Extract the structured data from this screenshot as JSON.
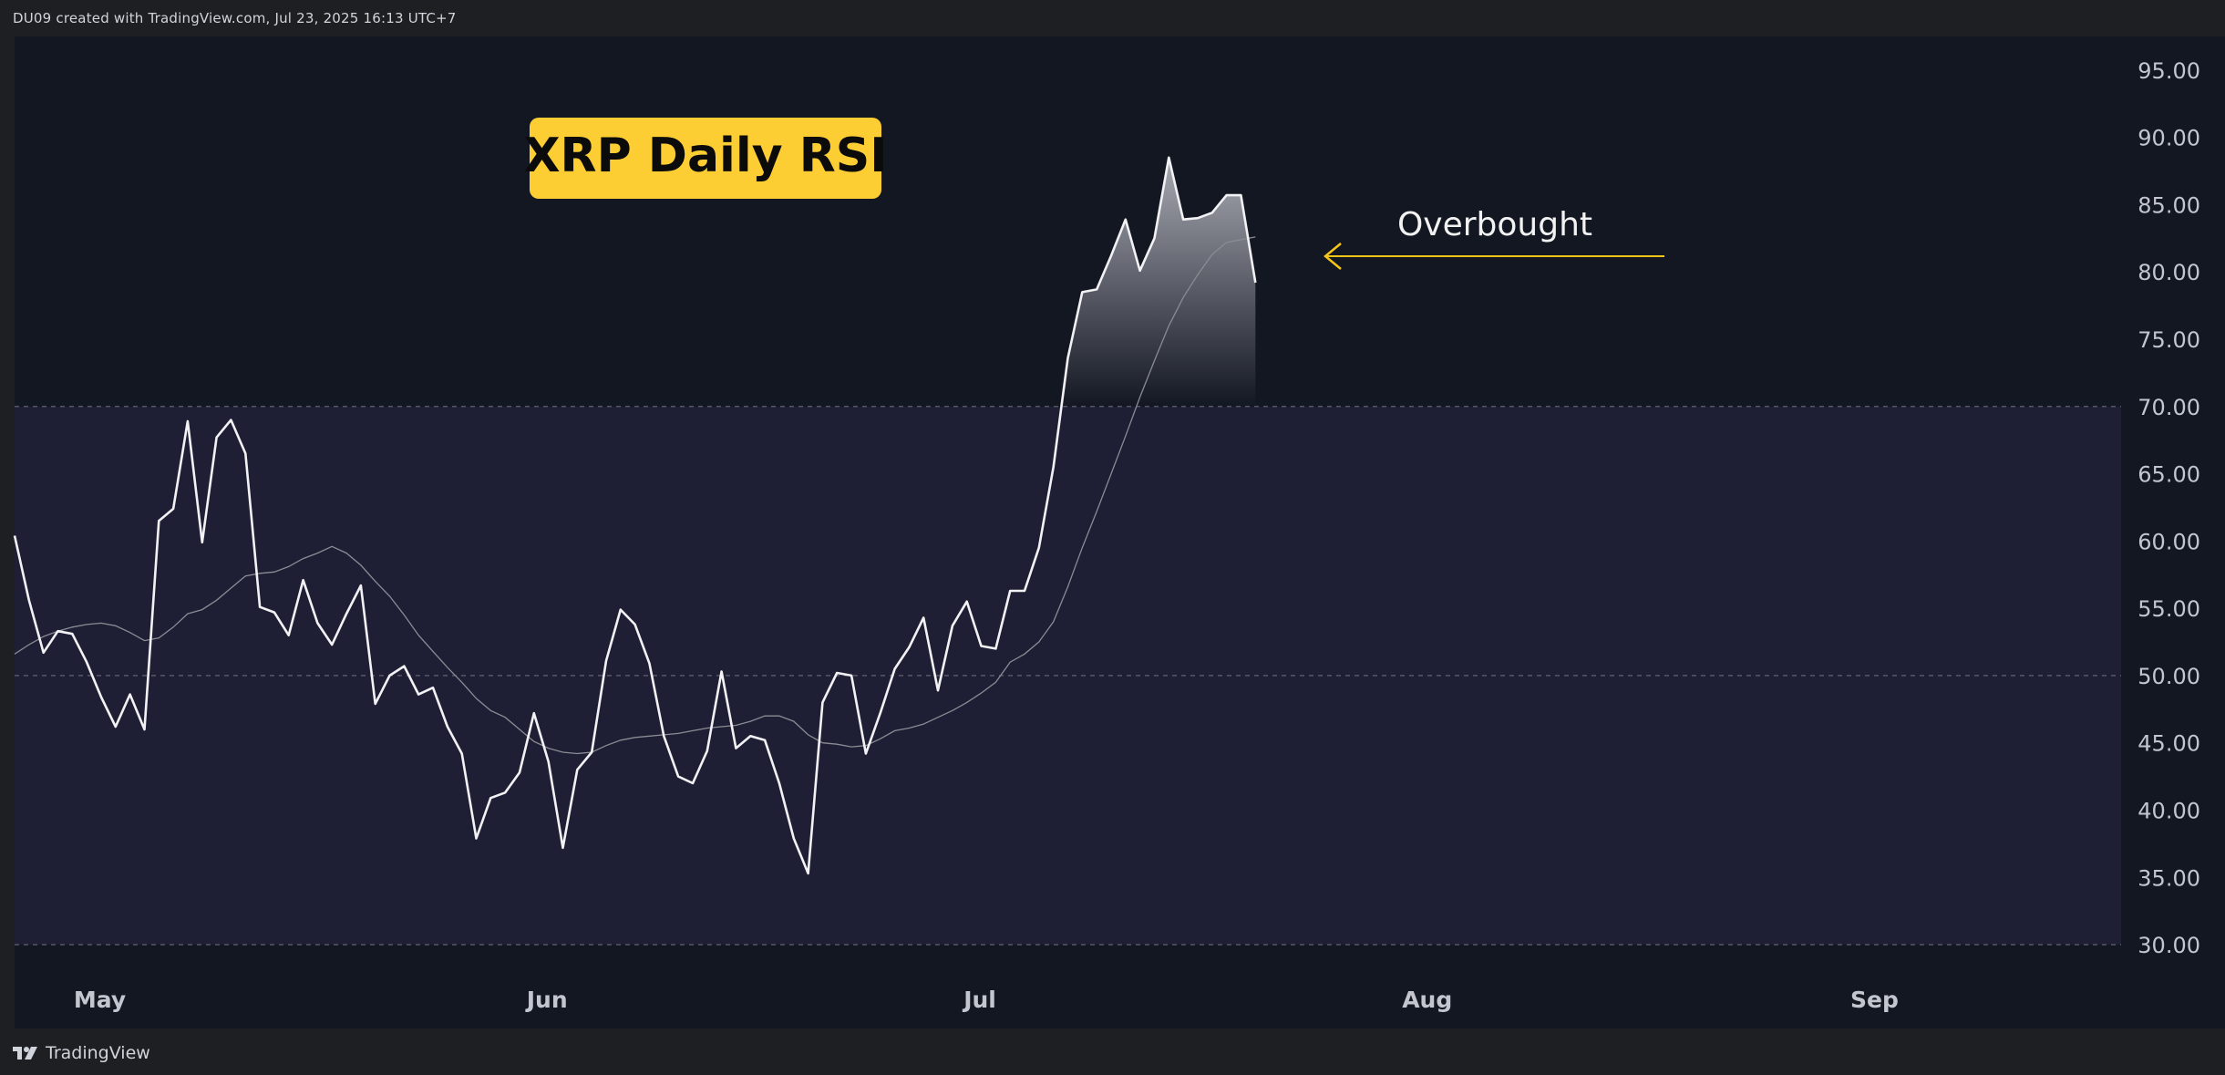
{
  "header": {
    "credit": "DU09 created with TradingView.com, Jul 23, 2025 16:13 UTC+7"
  },
  "footer": {
    "brand": "TradingView"
  },
  "colors": {
    "background": "#131722",
    "band": "#1e1f35",
    "rsi_line": "#f2f2f5",
    "ma_line": "#8a8c94",
    "title_box": "#fdce33",
    "annotation": "#f5c518"
  },
  "chart_data": {
    "type": "line",
    "title": "XRP Daily RSI",
    "annotation": "Overbought",
    "ylim": [
      27.7,
      97.5
    ],
    "yticks": [
      "95.00",
      "90.00",
      "85.00",
      "80.00",
      "75.00",
      "70.00",
      "65.00",
      "60.00",
      "55.00",
      "50.00",
      "45.00",
      "40.00",
      "35.00",
      "30.00"
    ],
    "xticks": [
      {
        "label": "May",
        "date": "2025-05-01"
      },
      {
        "label": "Jun",
        "date": "2025-06-01"
      },
      {
        "label": "Jul",
        "date": "2025-07-01"
      },
      {
        "label": "Aug",
        "date": "2025-08-01"
      },
      {
        "label": "Sep",
        "date": "2025-09-01"
      }
    ],
    "xrange": [
      "2025-04-28",
      "2025-09-21"
    ],
    "levels": {
      "overbought": 70,
      "middle": 50,
      "oversold": 30
    },
    "series": [
      {
        "key": "rsi",
        "start": "2025-04-28",
        "values": [
          60.4,
          55.6,
          51.7,
          53.3,
          53.1,
          51.0,
          48.4,
          46.2,
          48.6,
          46.0,
          61.5,
          62.4,
          68.9,
          59.9,
          67.7,
          69.0,
          66.5,
          55.1,
          54.7,
          53.0,
          57.1,
          53.9,
          52.3,
          54.6,
          56.7,
          47.9,
          50.0,
          50.7,
          48.6,
          49.1,
          46.2,
          44.2,
          37.9,
          40.9,
          41.3,
          42.8,
          47.2,
          43.6,
          37.2,
          43.0,
          44.3,
          51.1,
          54.9,
          53.8,
          50.9,
          45.5,
          42.5,
          42.0,
          44.4,
          50.3,
          44.6,
          45.5,
          45.2,
          42.0,
          37.9,
          35.3,
          48.0,
          50.2,
          50.0,
          44.2,
          47.2,
          50.5,
          52.1,
          54.3,
          48.9,
          53.7,
          55.5,
          52.2,
          52.0,
          56.3,
          56.3,
          59.5,
          65.5,
          73.6,
          78.5,
          78.7,
          81.2,
          83.9,
          80.1,
          82.5,
          88.5,
          83.9,
          84.0,
          84.4,
          85.7,
          85.7,
          79.2
        ]
      },
      {
        "key": "ma",
        "start": "2025-04-28",
        "values": [
          51.6,
          52.3,
          52.9,
          53.3,
          53.6,
          53.8,
          53.9,
          53.7,
          53.2,
          52.6,
          52.8,
          53.6,
          54.6,
          54.9,
          55.6,
          56.5,
          57.4,
          57.6,
          57.7,
          58.1,
          58.7,
          59.1,
          59.6,
          59.1,
          58.2,
          57.0,
          55.9,
          54.5,
          53.0,
          51.8,
          50.6,
          49.5,
          48.3,
          47.4,
          46.9,
          46.0,
          45.1,
          44.6,
          44.3,
          44.2,
          44.3,
          44.8,
          45.2,
          45.4,
          45.5,
          45.6,
          45.7,
          45.9,
          46.1,
          46.2,
          46.3,
          46.6,
          47.0,
          47.0,
          46.6,
          45.6,
          45.0,
          44.9,
          44.7,
          44.8,
          45.3,
          45.9,
          46.1,
          46.4,
          46.9,
          47.4,
          48.0,
          48.7,
          49.5,
          51.0,
          51.6,
          52.5,
          54.0,
          56.6,
          59.5,
          62.2,
          65.0,
          67.8,
          70.7,
          73.4,
          76.0,
          78.1,
          79.8,
          81.3,
          82.2,
          82.4,
          82.6
        ]
      }
    ]
  }
}
